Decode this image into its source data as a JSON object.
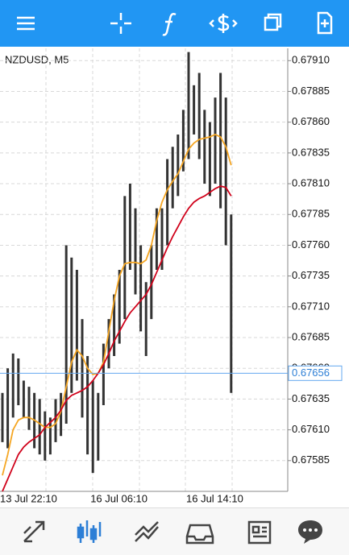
{
  "chart_data": {
    "type": "ohlc",
    "title": "NZDUSD, M5",
    "categories": [
      "13 Jul 22:10",
      null,
      null,
      null,
      null,
      null,
      null,
      null,
      null,
      null,
      null,
      null,
      null,
      null,
      null,
      null,
      null,
      "16 Jul 06:10",
      null,
      null,
      null,
      null,
      null,
      null,
      null,
      null,
      null,
      null,
      null,
      null,
      null,
      null,
      null,
      null,
      null,
      "16 Jul 14:10",
      null,
      null,
      null,
      null,
      null,
      null,
      null,
      null
    ],
    "high": [
      0.6764,
      0.6766,
      0.67672,
      0.67668,
      0.6765,
      0.67645,
      0.6764,
      0.67635,
      0.67625,
      0.6762,
      0.67635,
      0.6764,
      0.6776,
      0.6775,
      0.6774,
      0.677,
      0.6767,
      0.6765,
      0.6764,
      0.6768,
      0.677,
      0.6772,
      0.6774,
      0.678,
      0.6781,
      0.6779,
      0.6776,
      0.6773,
      0.6776,
      0.6779,
      0.6779,
      0.6783,
      0.6784,
      0.6785,
      0.6787,
      0.67917,
      0.6789,
      0.679,
      0.6787,
      0.6786,
      0.6788,
      0.679,
      0.6788,
      0.67785
    ],
    "low": [
      0.676,
      0.67595,
      0.6762,
      0.6763,
      0.6762,
      0.6761,
      0.67595,
      0.6759,
      0.67585,
      0.6759,
      0.676,
      0.67605,
      0.67615,
      0.6764,
      0.6765,
      0.6762,
      0.6759,
      0.67575,
      0.67585,
      0.6763,
      0.6766,
      0.6767,
      0.6768,
      0.677,
      0.6774,
      0.6772,
      0.6769,
      0.6767,
      0.677,
      0.6774,
      0.6774,
      0.6776,
      0.6779,
      0.678,
      0.6782,
      0.6783,
      0.6785,
      0.6783,
      0.6781,
      0.678,
      0.6781,
      0.6779,
      0.6776,
      0.6764
    ],
    "color": "#333333",
    "series": [
      {
        "color": "#f5a623",
        "values": [
          0.67573,
          0.6759,
          0.6761,
          0.67618,
          0.6762,
          0.6762,
          0.67618,
          0.67615,
          0.67612,
          0.67612,
          0.67615,
          0.67625,
          0.67645,
          0.67665,
          0.67675,
          0.6767,
          0.6766,
          0.67655,
          0.67656,
          0.67665,
          0.6769,
          0.67715,
          0.67735,
          0.67745,
          0.67746,
          0.67746,
          0.67745,
          0.67748,
          0.6776,
          0.6778,
          0.67795,
          0.67805,
          0.67812,
          0.67818,
          0.67828,
          0.67838,
          0.67843,
          0.67846,
          0.67847,
          0.67848,
          0.6785,
          0.67848,
          0.6784,
          0.67825
        ]
      },
      {
        "color": "#d0021b",
        "values": [
          0.6756,
          0.6757,
          0.6758,
          0.6759,
          0.67596,
          0.676,
          0.67603,
          0.67606,
          0.67612,
          0.67616,
          0.6762,
          0.67626,
          0.67634,
          0.67638,
          0.6764,
          0.67642,
          0.67645,
          0.6765,
          0.67656,
          0.67663,
          0.67672,
          0.67682,
          0.6769,
          0.67698,
          0.67705,
          0.6771,
          0.67715,
          0.6772,
          0.67728,
          0.67738,
          0.67748,
          0.67758,
          0.67767,
          0.67775,
          0.67783,
          0.6779,
          0.67795,
          0.67798,
          0.678,
          0.67803,
          0.67806,
          0.67808,
          0.67807,
          0.678
        ]
      }
    ],
    "last_price": 0.67656,
    "ylim": [
      0.6756,
      0.6792
    ],
    "yticks": [
      {
        "value": 0.6791,
        "label": "0.67910"
      },
      {
        "value": 0.67885,
        "label": "0.67885"
      },
      {
        "value": 0.6786,
        "label": "0.67860"
      },
      {
        "value": 0.67835,
        "label": "0.67835"
      },
      {
        "value": 0.6781,
        "label": "0.67810"
      },
      {
        "value": 0.67785,
        "label": "0.67785"
      },
      {
        "value": 0.6776,
        "label": "0.67760"
      },
      {
        "value": 0.67735,
        "label": "0.67735"
      },
      {
        "value": 0.6771,
        "label": "0.67710"
      },
      {
        "value": 0.67685,
        "label": "0.67685"
      },
      {
        "value": 0.6766,
        "label": "0.67660"
      },
      {
        "value": 0.67635,
        "label": "0.67635"
      },
      {
        "value": 0.6761,
        "label": "0.67610"
      },
      {
        "value": 0.67585,
        "label": "0.67585"
      }
    ],
    "grid": true
  }
}
